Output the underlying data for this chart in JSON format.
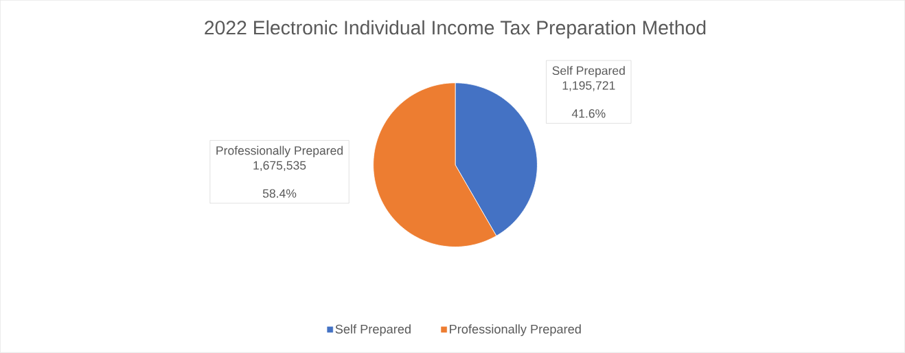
{
  "chart_data": {
    "type": "pie",
    "title": "2022 Electronic Individual Income Tax Preparation Method",
    "categories": [
      "Self Prepared",
      "Professionally Prepared"
    ],
    "values": [
      1195721,
      1675535
    ],
    "colors": [
      "#4472c4",
      "#ed7d31"
    ],
    "value_labels": [
      "1,195,721",
      "1,675,535"
    ],
    "annotations": [
      "41.6%",
      "58.4%"
    ],
    "legend": "bottom"
  }
}
